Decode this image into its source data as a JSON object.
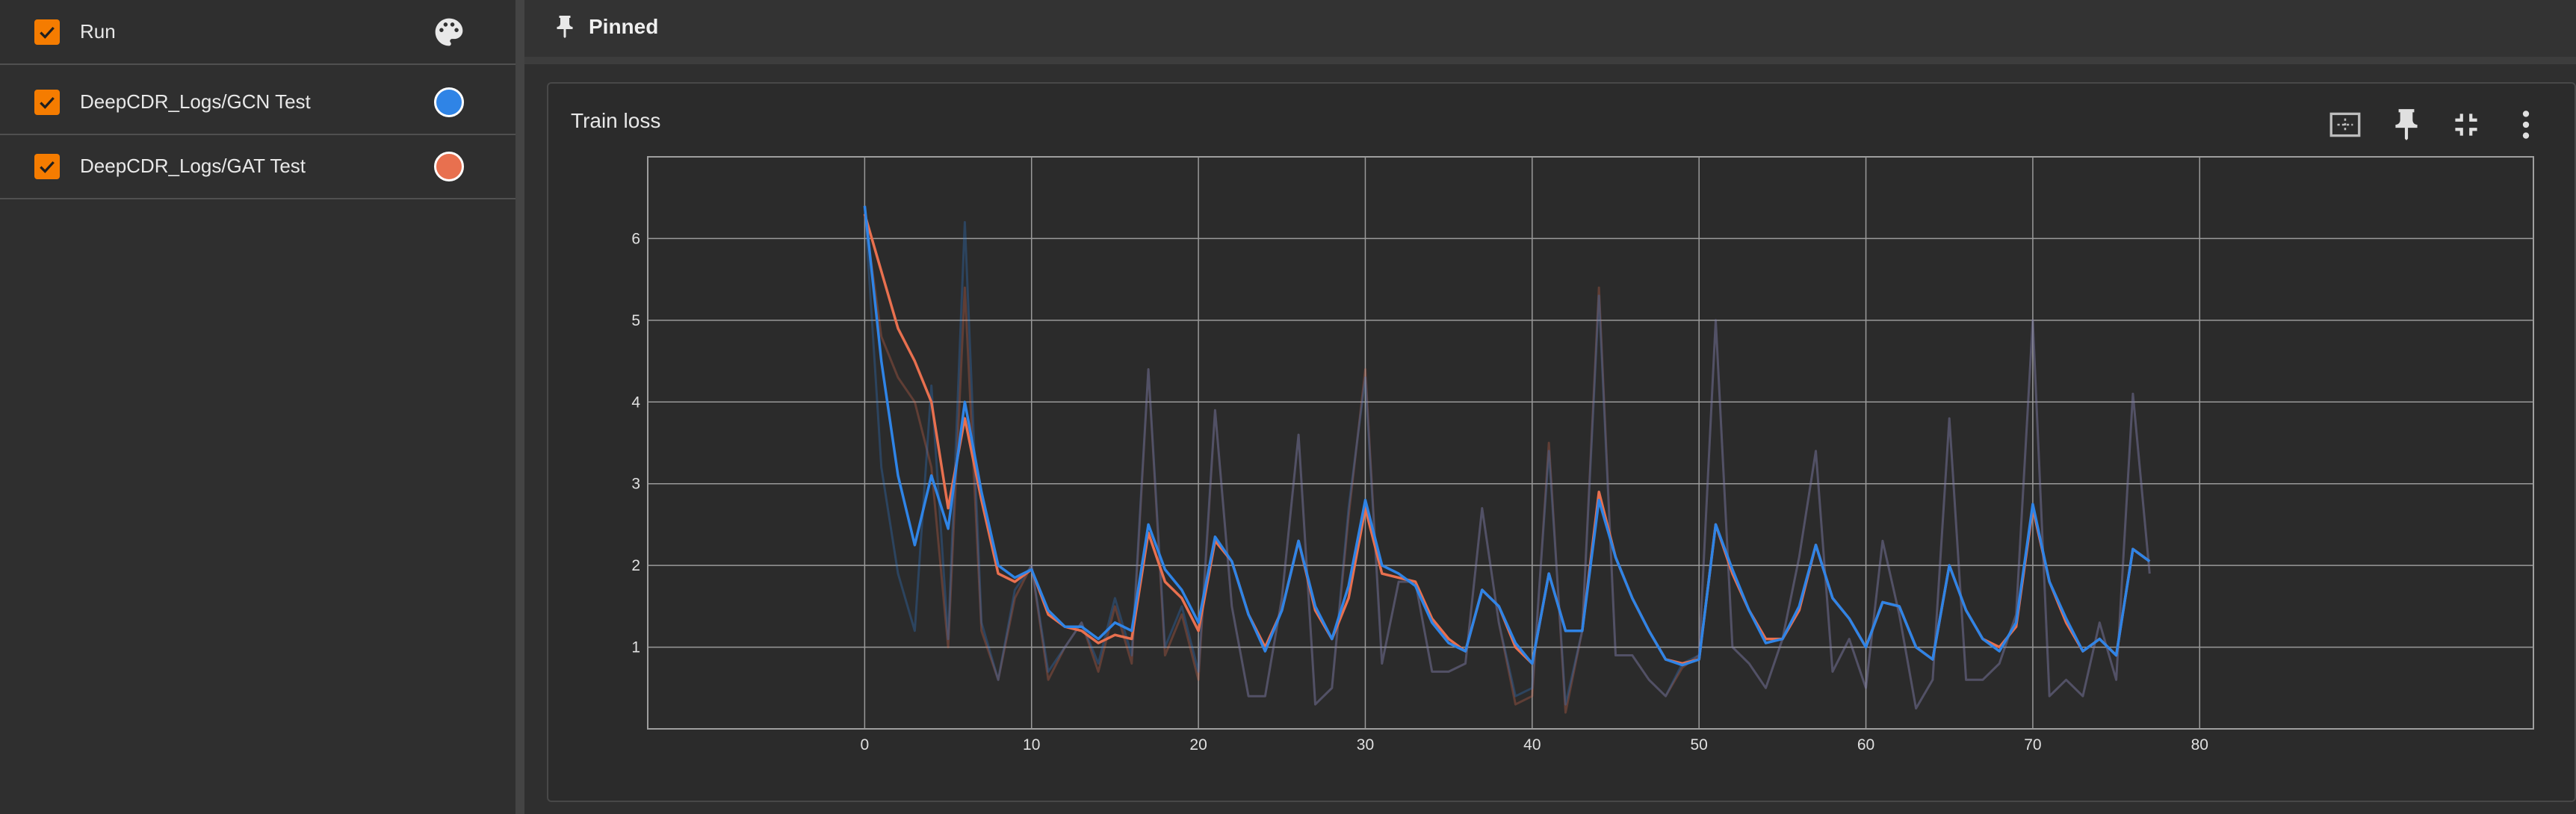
{
  "sidebar": {
    "header": {
      "label": "Run"
    },
    "runs": [
      {
        "label": "DeepCDR_Logs/GCN Test",
        "color": "#2f84e6"
      },
      {
        "label": "DeepCDR_Logs/GAT Test",
        "color": "#e8704f"
      }
    ],
    "accent": "#f57c00"
  },
  "pinned": {
    "title": "Pinned",
    "icon": "pin-icon"
  },
  "card": {
    "title": "Train loss",
    "tools": [
      "fit-domain-icon",
      "pin-icon",
      "collapse-icon",
      "more-vert-icon"
    ]
  },
  "chart_data": {
    "type": "line",
    "title": "Train loss",
    "xlabel": "",
    "ylabel": "",
    "xlim": [
      -13,
      100
    ],
    "ylim": [
      0,
      7
    ],
    "xticks": [
      0,
      10,
      20,
      30,
      40,
      50,
      60,
      70,
      80
    ],
    "yticks": [
      1,
      2,
      3,
      4,
      5,
      6
    ],
    "grid": true,
    "legend": "none",
    "series": [
      {
        "name": "DeepCDR_Logs/GAT Test",
        "color": "#e8704f",
        "x": [
          0,
          1,
          2,
          3,
          4,
          5,
          6,
          7,
          8,
          9,
          10,
          11,
          12,
          13,
          14,
          15,
          16,
          17,
          18,
          19,
          20,
          21,
          22,
          23,
          24,
          25,
          26,
          27,
          28,
          29,
          30,
          31,
          32,
          33,
          34,
          35,
          36,
          37,
          38,
          39,
          40,
          41,
          42,
          43,
          44,
          45,
          46,
          47,
          48,
          49,
          50,
          51,
          52,
          53,
          54,
          55,
          56,
          57,
          58,
          59,
          60,
          61,
          62,
          63,
          64,
          65,
          66,
          67,
          68,
          69,
          70,
          71,
          72,
          73,
          74,
          75,
          76,
          77
        ],
        "smoothed": [
          6.3,
          5.6,
          4.9,
          4.5,
          4.0,
          2.7,
          3.8,
          2.8,
          1.9,
          1.8,
          1.95,
          1.4,
          1.25,
          1.2,
          1.05,
          1.15,
          1.1,
          2.4,
          1.8,
          1.6,
          1.2,
          2.3,
          2.05,
          1.4,
          1.0,
          1.45,
          2.3,
          1.45,
          1.1,
          1.6,
          2.7,
          1.9,
          1.85,
          1.8,
          1.35,
          1.1,
          0.95,
          1.7,
          1.5,
          1.0,
          0.8,
          1.9,
          1.2,
          1.2,
          2.9,
          2.1,
          1.6,
          1.2,
          0.85,
          0.8,
          0.85,
          2.5,
          1.9,
          1.45,
          1.1,
          1.1,
          1.45,
          2.25,
          1.6,
          1.35,
          1.0,
          1.55,
          1.5,
          1.0,
          0.85,
          2.0,
          1.45,
          1.1,
          1.0,
          1.25,
          2.7,
          1.8,
          1.3,
          0.95,
          1.1,
          0.9,
          2.2,
          2.05
        ],
        "raw": [
          6.3,
          4.8,
          4.3,
          4.0,
          3.2,
          1.0,
          5.4,
          1.2,
          0.6,
          1.6,
          2.0,
          0.6,
          1.0,
          1.3,
          0.7,
          1.5,
          0.8,
          4.4,
          0.9,
          1.4,
          0.6,
          3.9,
          1.5,
          0.4,
          0.4,
          1.6,
          3.6,
          0.3,
          0.5,
          2.6,
          4.4,
          0.8,
          1.8,
          1.8,
          0.7,
          0.7,
          0.8,
          2.7,
          1.3,
          0.3,
          0.4,
          3.5,
          0.2,
          1.2,
          5.4,
          0.9,
          0.9,
          0.6,
          0.4,
          0.75,
          0.9,
          5.0,
          1.0,
          0.8,
          0.5,
          1.1,
          2.1,
          3.4,
          0.7,
          1.1,
          0.5,
          2.3,
          1.4,
          0.25,
          0.6,
          3.8,
          0.6,
          0.6,
          0.8,
          1.4,
          5.0,
          0.4,
          0.6,
          0.4,
          1.3,
          0.6,
          4.1,
          1.9
        ]
      },
      {
        "name": "DeepCDR_Logs/GCN Test",
        "color": "#2f84e6",
        "x": [
          0,
          1,
          2,
          3,
          4,
          5,
          6,
          7,
          8,
          9,
          10,
          11,
          12,
          13,
          14,
          15,
          16,
          17,
          18,
          19,
          20,
          21,
          22,
          23,
          24,
          25,
          26,
          27,
          28,
          29,
          30,
          31,
          32,
          33,
          34,
          35,
          36,
          37,
          38,
          39,
          40,
          41,
          42,
          43,
          44,
          45,
          46,
          47,
          48,
          49,
          50,
          51,
          52,
          53,
          54,
          55,
          56,
          57,
          58,
          59,
          60,
          61,
          62,
          63,
          64,
          65,
          66,
          67,
          68,
          69,
          70,
          71,
          72,
          73,
          74,
          75,
          76,
          77
        ],
        "smoothed": [
          6.4,
          4.5,
          3.1,
          2.25,
          3.1,
          2.45,
          4.0,
          2.9,
          2.0,
          1.85,
          1.95,
          1.45,
          1.25,
          1.25,
          1.1,
          1.3,
          1.2,
          2.5,
          1.95,
          1.7,
          1.3,
          2.35,
          2.05,
          1.4,
          0.95,
          1.45,
          2.3,
          1.5,
          1.1,
          1.75,
          2.8,
          2.0,
          1.9,
          1.75,
          1.3,
          1.05,
          0.95,
          1.7,
          1.5,
          1.05,
          0.8,
          1.9,
          1.2,
          1.2,
          2.8,
          2.1,
          1.6,
          1.2,
          0.85,
          0.78,
          0.85,
          2.5,
          1.95,
          1.45,
          1.05,
          1.1,
          1.5,
          2.25,
          1.6,
          1.35,
          1.0,
          1.55,
          1.5,
          1.0,
          0.85,
          2.0,
          1.45,
          1.1,
          0.95,
          1.3,
          2.75,
          1.8,
          1.35,
          0.95,
          1.1,
          0.9,
          2.2,
          2.05
        ],
        "raw": [
          6.4,
          3.2,
          1.9,
          1.2,
          4.2,
          1.1,
          6.2,
          1.3,
          0.6,
          1.7,
          2.0,
          0.7,
          1.0,
          1.3,
          0.8,
          1.6,
          0.9,
          4.4,
          1.0,
          1.5,
          0.7,
          3.9,
          1.5,
          0.4,
          0.4,
          1.6,
          3.6,
          0.3,
          0.5,
          2.7,
          4.3,
          0.8,
          1.8,
          1.8,
          0.7,
          0.7,
          0.8,
          2.7,
          1.3,
          0.4,
          0.5,
          3.4,
          0.3,
          1.2,
          5.3,
          0.9,
          0.9,
          0.6,
          0.4,
          0.8,
          0.9,
          5.0,
          1.0,
          0.8,
          0.5,
          1.1,
          2.1,
          3.4,
          0.7,
          1.1,
          0.5,
          2.3,
          1.4,
          0.25,
          0.6,
          3.8,
          0.6,
          0.6,
          0.8,
          1.4,
          5.0,
          0.4,
          0.6,
          0.4,
          1.3,
          0.6,
          4.1,
          1.9
        ]
      }
    ]
  }
}
